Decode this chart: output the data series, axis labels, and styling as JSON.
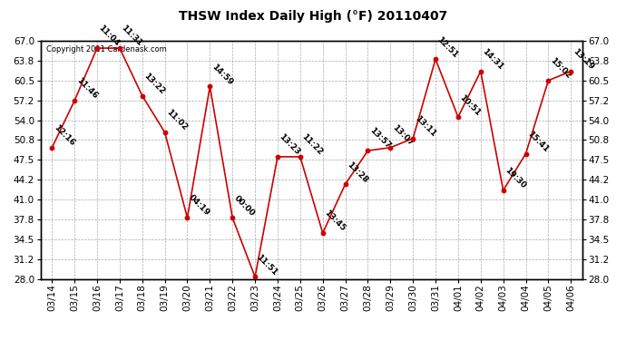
{
  "title": "THSW Index Daily High (°F) 20110407",
  "copyright": "Copyright 2011 Cardenask.com",
  "dates": [
    "03/14",
    "03/15",
    "03/16",
    "03/17",
    "03/18",
    "03/19",
    "03/20",
    "03/21",
    "03/22",
    "03/23",
    "03/24",
    "03/25",
    "03/26",
    "03/27",
    "03/28",
    "03/29",
    "03/30",
    "03/31",
    "04/01",
    "04/02",
    "04/03",
    "04/04",
    "04/05",
    "04/06"
  ],
  "values": [
    49.5,
    57.2,
    65.8,
    65.8,
    58.0,
    52.0,
    38.0,
    59.5,
    38.0,
    28.3,
    48.0,
    48.0,
    35.5,
    43.5,
    49.0,
    49.5,
    51.0,
    64.0,
    54.5,
    62.0,
    42.5,
    48.5,
    60.5,
    62.0
  ],
  "annotations": [
    "12:16",
    "11:46",
    "11:04",
    "11:31",
    "13:22",
    "11:02",
    "04:19",
    "14:59",
    "00:00",
    "11:51",
    "13:23",
    "11:22",
    "13:45",
    "13:28",
    "13:57",
    "13:07",
    "13:11",
    "12:51",
    "10:51",
    "14:31",
    "19:30",
    "15:41",
    "15:02",
    "13:19"
  ],
  "ylim": [
    28.0,
    67.0
  ],
  "yticks": [
    28.0,
    31.2,
    34.5,
    37.8,
    41.0,
    44.2,
    47.5,
    50.8,
    54.0,
    57.2,
    60.5,
    63.8,
    67.0
  ],
  "line_color": "#cc0000",
  "marker_color": "#cc0000",
  "bg_color": "#ffffff",
  "plot_bg_color": "#ffffff",
  "grid_color": "#aaaaaa",
  "title_fontsize": 10,
  "annotation_fontsize": 6.5,
  "tick_fontsize": 7.5,
  "copyright_fontsize": 6
}
